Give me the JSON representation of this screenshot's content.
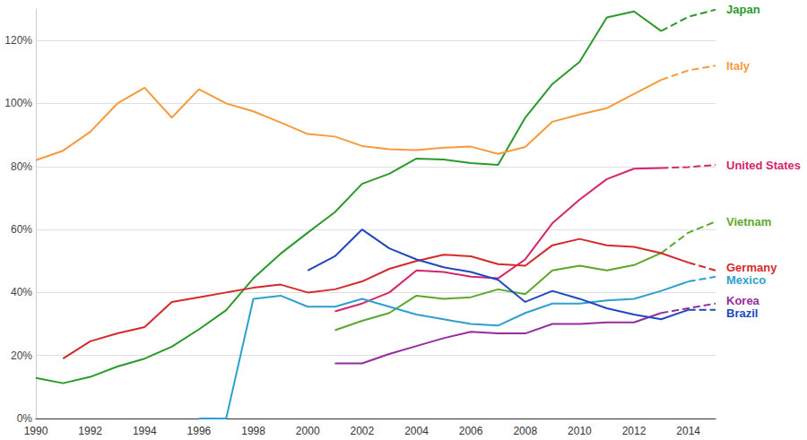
{
  "chart_data": {
    "type": "line",
    "x": [
      1990,
      1991,
      1992,
      1993,
      1994,
      1995,
      1996,
      1997,
      1998,
      1999,
      2000,
      2001,
      2002,
      2003,
      2004,
      2005,
      2006,
      2007,
      2008,
      2009,
      2010,
      2011,
      2012,
      2013,
      2014,
      2015
    ],
    "xlim": [
      1990,
      2015
    ],
    "xticks": [
      1990,
      1992,
      1994,
      1996,
      1998,
      2000,
      2002,
      2004,
      2006,
      2008,
      2010,
      2012,
      2014
    ],
    "ylim": [
      0,
      130
    ],
    "yticks": [
      {
        "value": 0,
        "label": "0%"
      },
      {
        "value": 20,
        "label": "20%"
      },
      {
        "value": 40,
        "label": "40%"
      },
      {
        "value": 60,
        "label": "60%"
      },
      {
        "value": 80,
        "label": "80%"
      },
      {
        "value": 100,
        "label": "100%"
      },
      {
        "value": 120,
        "label": "120%"
      }
    ],
    "grid": true,
    "series": [
      {
        "name": "Japan",
        "color": "#2a9a2a",
        "line_style": "solid",
        "values": [
          12.9,
          11.2,
          13.2,
          16.5,
          19,
          22.8,
          28.3,
          34.4,
          44.5,
          52.3,
          59,
          65.5,
          74.5,
          77.7,
          82.5,
          82.2,
          81.1,
          80.5,
          95.5,
          106.2,
          113.2,
          127.3,
          129.2,
          123,
          null,
          null
        ]
      },
      {
        "name": "Japan",
        "color": "#2a9a2a",
        "line_style": "dashed",
        "values": [
          null,
          null,
          null,
          null,
          null,
          null,
          null,
          null,
          null,
          null,
          null,
          null,
          null,
          null,
          null,
          null,
          null,
          null,
          null,
          null,
          null,
          null,
          null,
          123,
          127.5,
          129.8
        ]
      },
      {
        "name": "Italy",
        "color": "#f89a3c",
        "line_style": "solid",
        "values": [
          82,
          85,
          91,
          100,
          105,
          95.5,
          104.5,
          100,
          97.5,
          94,
          90.3,
          89.5,
          86.5,
          85.5,
          85.2,
          86,
          86.3,
          84,
          86.2,
          94.2,
          96.5,
          98.5,
          103,
          107.5,
          null,
          null
        ]
      },
      {
        "name": "Italy",
        "color": "#f89a3c",
        "line_style": "dashed",
        "values": [
          null,
          null,
          null,
          null,
          null,
          null,
          null,
          null,
          null,
          null,
          null,
          null,
          null,
          null,
          null,
          null,
          null,
          null,
          null,
          null,
          null,
          null,
          null,
          107.5,
          110.5,
          112
        ]
      },
      {
        "name": "United States",
        "color": "#d6246e",
        "line_style": "solid",
        "values": [
          null,
          null,
          null,
          null,
          null,
          null,
          null,
          null,
          null,
          null,
          null,
          34,
          36.5,
          40,
          47,
          46.5,
          45,
          44.5,
          50.5,
          62,
          69.5,
          76,
          79.3,
          79.5,
          null,
          null
        ]
      },
      {
        "name": "United States",
        "color": "#d6246e",
        "line_style": "dashed",
        "values": [
          null,
          null,
          null,
          null,
          null,
          null,
          null,
          null,
          null,
          null,
          null,
          null,
          null,
          null,
          null,
          null,
          null,
          null,
          null,
          null,
          null,
          null,
          null,
          79.5,
          79.8,
          80.5
        ]
      },
      {
        "name": "Vietnam",
        "color": "#5da82a",
        "line_style": "solid",
        "values": [
          null,
          null,
          null,
          null,
          null,
          null,
          null,
          null,
          null,
          null,
          null,
          28,
          31,
          33.5,
          39,
          38,
          38.5,
          41,
          39.5,
          47,
          48.5,
          47,
          48.7,
          52.5,
          null,
          null
        ]
      },
      {
        "name": "Vietnam",
        "color": "#5da82a",
        "line_style": "dashed",
        "values": [
          null,
          null,
          null,
          null,
          null,
          null,
          null,
          null,
          null,
          null,
          null,
          null,
          null,
          null,
          null,
          null,
          null,
          null,
          null,
          null,
          null,
          null,
          null,
          52.5,
          59,
          62.5
        ]
      },
      {
        "name": "Germany",
        "color": "#d42a2a",
        "line_style": "solid",
        "values": [
          null,
          19,
          24.5,
          27,
          29,
          37,
          38.5,
          40,
          41.5,
          42.5,
          40,
          41,
          43.5,
          47.5,
          50,
          52,
          51.5,
          49,
          48.5,
          55,
          57,
          55,
          54.5,
          52.5,
          49.5,
          null
        ]
      },
      {
        "name": "Germany",
        "color": "#d42a2a",
        "line_style": "dashed",
        "values": [
          null,
          null,
          null,
          null,
          null,
          null,
          null,
          null,
          null,
          null,
          null,
          null,
          null,
          null,
          null,
          null,
          null,
          null,
          null,
          null,
          null,
          null,
          null,
          null,
          49.5,
          47
        ]
      },
      {
        "name": "Mexico",
        "color": "#2d9fd0",
        "line_style": "solid",
        "values": [
          null,
          null,
          null,
          null,
          null,
          null,
          0,
          0,
          38,
          39,
          35.5,
          35.5,
          38,
          35.5,
          33,
          31.5,
          30,
          29.5,
          33.5,
          36.5,
          36.5,
          37.5,
          38,
          40.5,
          43.5,
          null
        ]
      },
      {
        "name": "Mexico",
        "color": "#2d9fd0",
        "line_style": "dashed",
        "values": [
          null,
          null,
          null,
          null,
          null,
          null,
          null,
          null,
          null,
          null,
          null,
          null,
          null,
          null,
          null,
          null,
          null,
          null,
          null,
          null,
          null,
          null,
          null,
          null,
          43.5,
          45
        ]
      },
      {
        "name": "Korea",
        "color": "#962c9e",
        "line_style": "solid",
        "values": [
          null,
          null,
          null,
          null,
          null,
          null,
          null,
          null,
          null,
          null,
          null,
          17.5,
          17.5,
          20.5,
          23,
          25.5,
          27.5,
          27,
          27,
          30,
          30,
          30.5,
          30.5,
          33.5,
          null,
          null
        ]
      },
      {
        "name": "Korea",
        "color": "#962c9e",
        "line_style": "dashed",
        "values": [
          null,
          null,
          null,
          null,
          null,
          null,
          null,
          null,
          null,
          null,
          null,
          null,
          null,
          null,
          null,
          null,
          null,
          null,
          null,
          null,
          null,
          null,
          null,
          33.5,
          35,
          36.5
        ]
      },
      {
        "name": "Brazil",
        "color": "#2048c0",
        "line_style": "solid",
        "values": [
          null,
          null,
          null,
          null,
          null,
          null,
          null,
          null,
          null,
          null,
          47,
          51.5,
          60,
          54,
          50.5,
          48,
          46.5,
          44,
          37,
          40.5,
          38,
          35,
          33,
          31.5,
          34.5,
          null
        ]
      },
      {
        "name": "Brazil",
        "color": "#2048c0",
        "line_style": "dashed",
        "values": [
          null,
          null,
          null,
          null,
          null,
          null,
          null,
          null,
          null,
          null,
          null,
          null,
          null,
          null,
          null,
          null,
          null,
          null,
          null,
          null,
          null,
          null,
          null,
          null,
          34.5,
          34.5
        ]
      }
    ]
  }
}
